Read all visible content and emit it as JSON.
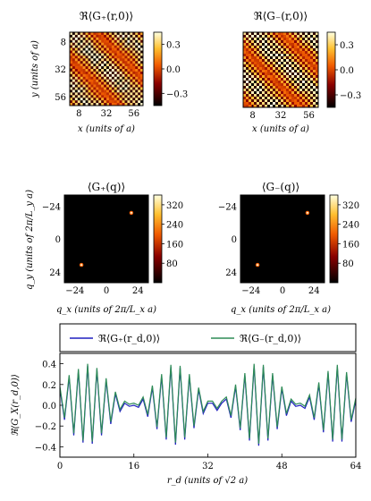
{
  "chart_data": [
    {
      "type": "heatmap",
      "title": "ℜ⟨G₊(r,0)⟩",
      "xlabel": "x (units of a)",
      "ylabel": "y (units of a)",
      "xticks": [
        8,
        32,
        56
      ],
      "yticks": [
        8,
        32,
        56
      ],
      "xlim": [
        0,
        64
      ],
      "ylim": [
        0,
        64
      ],
      "colorbar_ticks": [
        0.3,
        0.0,
        -0.3
      ],
      "colorbar_range": [
        -0.45,
        0.45
      ],
      "colormap": "afmhot",
      "pattern": "diagonal stripes"
    },
    {
      "type": "heatmap",
      "title": "ℜ⟨G₋(r,0)⟩",
      "xlabel": "x (units of a)",
      "ylabel": "",
      "xticks": [
        8,
        32,
        56
      ],
      "yticks": [],
      "xlim": [
        0,
        64
      ],
      "ylim": [
        0,
        64
      ],
      "colorbar_ticks": [
        0.3,
        0.0,
        -0.3
      ],
      "colorbar_range": [
        -0.45,
        0.45
      ],
      "colormap": "afmhot",
      "pattern": "diagonal stripes"
    },
    {
      "type": "heatmap",
      "title": "⟨G₊(q)⟩",
      "xlabel": "q_x (units of 2π/L_x a)",
      "ylabel": "q_y (units of 2π/L_y a)",
      "xticks": [
        -24,
        0,
        24
      ],
      "yticks": [
        -24,
        0,
        24
      ],
      "xlim": [
        -32,
        32
      ],
      "ylim": [
        -32,
        32
      ],
      "colorbar_ticks": [
        320,
        240,
        160,
        80
      ],
      "colorbar_range": [
        0,
        360
      ],
      "colormap": "afmhot",
      "peaks": [
        {
          "qx": 19,
          "qy": -19
        },
        {
          "qx": -19,
          "qy": 19
        }
      ]
    },
    {
      "type": "heatmap",
      "title": "⟨G₋(q)⟩",
      "xlabel": "q_x (units of 2π/L_x a)",
      "ylabel": "",
      "xticks": [
        -24,
        0,
        24
      ],
      "yticks": [
        -24,
        0,
        24
      ],
      "xlim": [
        -32,
        32
      ],
      "ylim": [
        -32,
        32
      ],
      "colorbar_ticks": [
        320,
        240,
        160,
        80
      ],
      "colorbar_range": [
        0,
        360
      ],
      "colormap": "afmhot",
      "peaks": [
        {
          "qx": 19,
          "qy": -19
        },
        {
          "qx": -19,
          "qy": 19
        }
      ]
    },
    {
      "type": "line",
      "xlabel": "r_d (units of √2 a)",
      "ylabel": "ℜ⟨G_X(r_d,0)⟩",
      "xlim": [
        0,
        64
      ],
      "ylim": [
        -0.5,
        0.5
      ],
      "xticks": [
        0,
        16,
        32,
        48,
        64
      ],
      "yticks": [
        0.4,
        0.2,
        0.0,
        -0.2,
        -0.4
      ],
      "legend_position": "above plot",
      "x": [
        0,
        1,
        2,
        3,
        4,
        5,
        6,
        7,
        8,
        9,
        10,
        11,
        12,
        13,
        14,
        15,
        16,
        17,
        18,
        19,
        20,
        21,
        22,
        23,
        24,
        25,
        26,
        27,
        28,
        29,
        30,
        31,
        32,
        33,
        34,
        35,
        36,
        37,
        38,
        39,
        40,
        41,
        42,
        43,
        44,
        45,
        46,
        47,
        48,
        49,
        50,
        51,
        52,
        53,
        54,
        55,
        56,
        57,
        58,
        59,
        60,
        61,
        62,
        63,
        64
      ],
      "series": [
        {
          "name": "ℜ⟨G₊(r_d,0)⟩",
          "color": "#1f1fbf",
          "values": [
            0.16,
            -0.14,
            0.27,
            -0.29,
            0.33,
            -0.36,
            0.38,
            -0.37,
            0.34,
            -0.29,
            0.24,
            -0.18,
            0.11,
            -0.06,
            0.02,
            -0.01,
            0.0,
            -0.02,
            0.06,
            -0.11,
            0.17,
            -0.23,
            0.28,
            -0.33,
            0.37,
            -0.38,
            0.36,
            -0.33,
            0.28,
            -0.22,
            0.15,
            -0.08,
            0.02,
            0.02,
            -0.05,
            0.02,
            0.06,
            -0.12,
            0.18,
            -0.24,
            0.29,
            -0.34,
            0.38,
            -0.39,
            0.37,
            -0.34,
            0.29,
            -0.23,
            0.16,
            -0.1,
            0.04,
            -0.01,
            0.0,
            -0.03,
            0.08,
            -0.14,
            0.2,
            -0.26,
            0.31,
            -0.35,
            0.37,
            -0.35,
            0.3,
            -0.16,
            0.05
          ]
        },
        {
          "name": "ℜ⟨G₋(r_d,0)⟩",
          "color": "#2e8b57",
          "values": [
            0.18,
            -0.12,
            0.29,
            -0.27,
            0.35,
            -0.34,
            0.4,
            -0.35,
            0.36,
            -0.27,
            0.26,
            -0.16,
            0.13,
            -0.04,
            0.04,
            0.01,
            0.02,
            0.0,
            0.08,
            -0.09,
            0.19,
            -0.21,
            0.3,
            -0.31,
            0.39,
            -0.36,
            0.38,
            -0.31,
            0.3,
            -0.2,
            0.17,
            -0.06,
            0.04,
            0.04,
            -0.03,
            0.04,
            0.08,
            -0.1,
            0.2,
            -0.22,
            0.31,
            -0.32,
            0.4,
            -0.37,
            0.39,
            -0.32,
            0.31,
            -0.21,
            0.18,
            -0.08,
            0.06,
            0.01,
            0.02,
            -0.01,
            0.1,
            -0.12,
            0.22,
            -0.24,
            0.33,
            -0.33,
            0.39,
            -0.33,
            0.32,
            -0.14,
            0.07
          ]
        }
      ]
    }
  ]
}
